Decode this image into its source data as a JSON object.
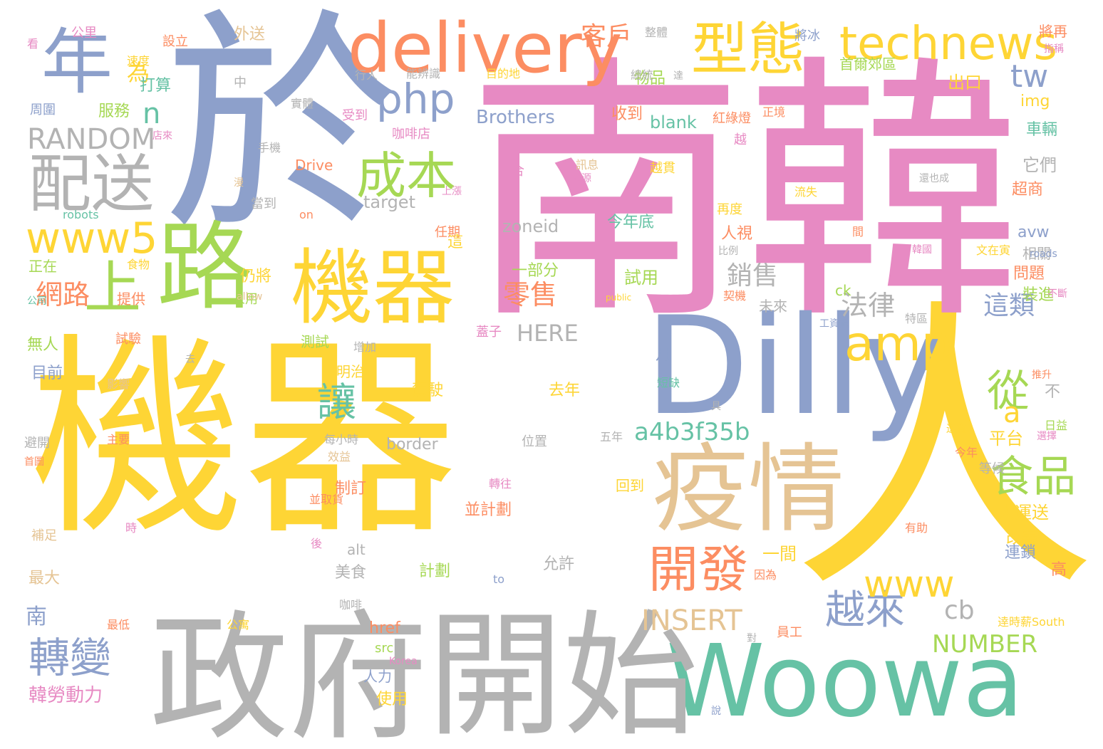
{
  "palette": {
    "yellow": "#FED535",
    "pink": "#E78AC3",
    "blue": "#8DA0CB",
    "green": "#66C2A5",
    "orange": "#FC8D62",
    "lime": "#A6D854",
    "tan": "#E5C494",
    "gray": "#B3B3B3"
  },
  "words": [
    "機器",
    "人",
    "南韓",
    "於",
    "Woowa",
    "政府",
    "開始",
    "Dilly",
    "疫情",
    "機器",
    "delivery",
    "technews",
    "路",
    "上",
    "年",
    "配送",
    "型態",
    "php",
    "成本",
    "www5",
    "amp",
    "tw",
    "食品",
    "開發",
    "轉變",
    "越來",
    "從",
    "讓",
    "a4b3f35b",
    "www",
    "RANDOM",
    "INSERT",
    "NUMBER",
    "cb",
    "n",
    "a",
    "客戶",
    "法律",
    "銷售",
    "這類",
    "HERE",
    "零售",
    "網路",
    "為",
    "外送",
    "物品",
    "公里",
    "設立",
    "整體",
    "將冰",
    "將再",
    "指稱",
    "看",
    "速度",
    "目的地",
    "總統",
    "首爾郊區",
    "達",
    "中",
    "出口",
    "能辨識",
    "行人",
    "實體",
    "周圍",
    "服務",
    "Brothers",
    "收到",
    "blank",
    "紅綠燈",
    "正境",
    "img",
    "咖啡店",
    "受到",
    "車輛",
    "越",
    "店來",
    "手機",
    "Drive",
    "越貫",
    "訊息",
    "來源",
    "還也成",
    "它們",
    "超商",
    "上漲",
    "流失",
    "合",
    "target",
    "robots",
    "on",
    "任期",
    "當到",
    "再度",
    "zoneid",
    "今年底",
    "avw",
    "人視",
    "相關",
    "這",
    "間",
    "比例",
    "文在寅",
    "韓國",
    "roads",
    "仍將",
    "試用",
    "一部分",
    "正在",
    "食物",
    "提供",
    "人用",
    "未來",
    "問題",
    "裝進",
    "ck",
    "公司",
    "allow",
    "public",
    "契機",
    "不斷",
    "月",
    "特區",
    "工資過",
    "無人",
    "試驗",
    "測試",
    "增加",
    "蓋子",
    "三明治",
    "目前",
    "影響",
    "去",
    "駕駛",
    "去年",
    "短缺",
    "具",
    "推升",
    "日益",
    "選擇",
    "避開",
    "主要",
    "border",
    "送貨",
    "五年",
    "位置",
    "不",
    "平台",
    "首圖",
    "每小時",
    "效益",
    "今年",
    "等候",
    "制訂",
    "轉往",
    "回到",
    "人運送",
    "改善",
    "並計劃",
    "並取貨",
    "時",
    "有助",
    "補足",
    "後",
    "alt",
    "一間",
    "連鎖",
    "高",
    "美食",
    "最大",
    "允許",
    "計劃",
    "to",
    "因為",
    "咖啡",
    "南",
    "最低",
    "公寓",
    "逹時薪South",
    "href",
    "員工",
    "對",
    "src",
    "Korea",
    "人力",
    "韓勞動力",
    "使用",
    "說",
    "打算",
    "漫"
  ]
}
